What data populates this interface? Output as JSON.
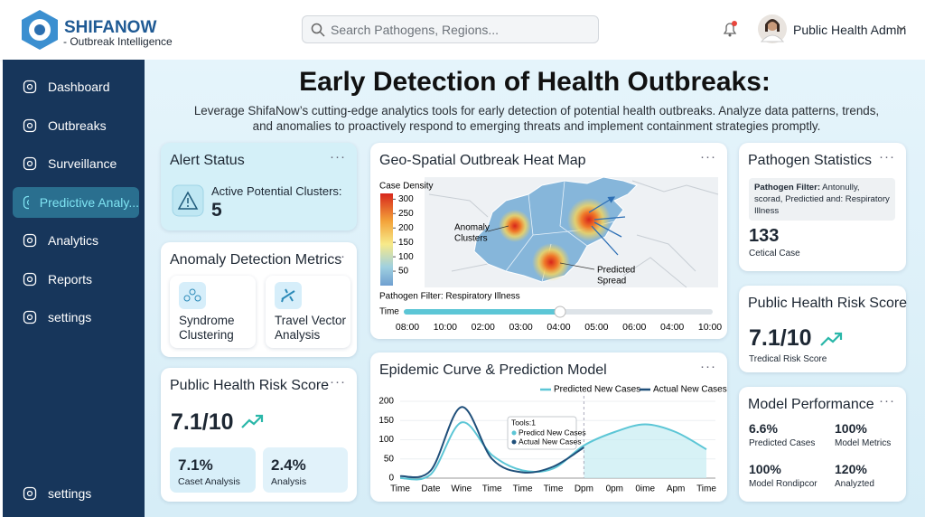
{
  "header": {
    "brand": "SHIFANOW",
    "tagline": "- Outbreak Intelligence",
    "search_placeholder": "Search Pathogens, Regions...",
    "user": "Public Health Admin"
  },
  "sidebar": {
    "items": [
      "Dashboard",
      "Outbreaks",
      "Surveillance",
      "Predictive Analy...",
      "Analytics",
      "Reports",
      "settings"
    ],
    "footer": "settings"
  },
  "intro": {
    "title": "Early Detection of Health Outbreaks:",
    "lines": [
      "Leverage ShifaNow’s cutting-edge analytics tools for early detection of potential health outbreaks. Analyze data patterns, trends,",
      "and anomalies to proactively respond to emerging threats and implement containment strategies promptly."
    ]
  },
  "alert_status": {
    "title": "Alert Status",
    "label": "Active Potential Clusters:",
    "value": "5"
  },
  "anomaly_metrics": {
    "title": "Anomaly Detection Metrics",
    "items": [
      "Syndrome Clustering",
      "Travel Vector Analysis"
    ]
  },
  "risk_score_left": {
    "title": "Public Health Risk Score",
    "score": "7.1/10",
    "stats": [
      {
        "value": "7.1%",
        "label": "Caset Analysis"
      },
      {
        "value": "2.4%",
        "label": "Analysis"
      }
    ]
  },
  "heat_map": {
    "title": "Geo-Spatial Outbreak Heat Map",
    "legend_title": "Case Density",
    "legend_lim": [
      0,
      320
    ],
    "legend_ticks": [
      300,
      250,
      200,
      150,
      100,
      50
    ],
    "annotations": [
      [
        "Anomaly",
        "Clusters"
      ],
      [
        "Predicted",
        "Spread"
      ]
    ],
    "filter": "Pathogen Filter: Respiratory Illness",
    "time_label": "Time",
    "time_ticks": [
      "08:00",
      "10:00",
      "02:00",
      "03:00",
      "04:00",
      "05:00",
      "06:00",
      "04:00",
      "10:00"
    ]
  },
  "chart_data": {
    "type": "line",
    "title": "Epidemic Curve & Prediction Model",
    "categories": [
      "Time",
      "Date",
      "Wine",
      "Time",
      "Time",
      "Time",
      "Dpm",
      "0pm",
      "0ime",
      "Apm",
      "Time"
    ],
    "ylim": [
      0,
      200
    ],
    "yticks": [
      0,
      50,
      100,
      150,
      200
    ],
    "series": [
      {
        "name": "Predicted New Cases",
        "color": "#5cc6d6",
        "values": [
          0,
          10,
          145,
          60,
          20,
          25,
          85,
          120,
          140,
          120,
          75
        ]
      },
      {
        "name": "Actual New Cases",
        "color": "#1f4f7a",
        "values": [
          5,
          20,
          185,
          50,
          15,
          30,
          80,
          null,
          null,
          null,
          null
        ]
      }
    ],
    "tooltip": {
      "title": "Tools:1",
      "items": [
        "Predicd New Cases",
        "Actual New Cases"
      ]
    }
  },
  "pathogen_stats": {
    "title": "Pathogen Statistics",
    "filter_label": "Pathogen Filter:",
    "filter_text": "Antonully, scorad, Predictied and: Respiratory Illness",
    "value": "133",
    "label": "Cetical Case"
  },
  "risk_score_right": {
    "title": "Public Health Risk Score",
    "score": "7.1/10",
    "label": "Tredical Risk Score"
  },
  "model_performance": {
    "title": "Model Performance",
    "metrics": [
      {
        "value": "6.6%",
        "label": "Predicted Cases"
      },
      {
        "value": "100%",
        "label": "Model Metrics"
      },
      {
        "value": "100%",
        "label": "Model Rondipcor"
      },
      {
        "value": "120%",
        "label": "Analyzted"
      }
    ]
  }
}
